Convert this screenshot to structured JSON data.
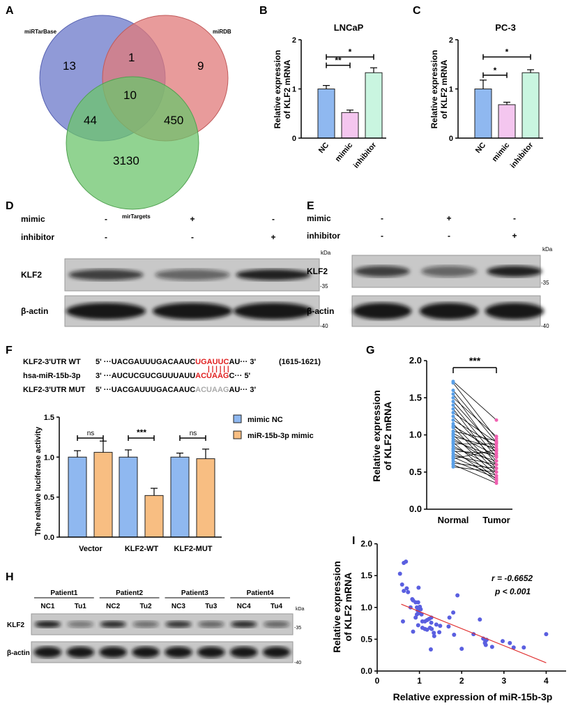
{
  "panels": {
    "A": "A",
    "B": "B",
    "C": "C",
    "D": "D",
    "E": "E",
    "F": "F",
    "G": "G",
    "H": "H",
    "I": "I"
  },
  "colors": {
    "blue": "#8fb8f0",
    "pink": "#f4c6ef",
    "mint": "#c9f5e0",
    "orange": "#f8be82",
    "venn_blue": "#6b78c9",
    "venn_red": "#e07a7a",
    "venn_green": "#6cc46c",
    "scatter": "#5a5fe0",
    "line": "#e03030",
    "red_text": "#e02020",
    "grey_text": "#aaaaaa"
  },
  "venn": {
    "labels": [
      "miRTarBase",
      "miRDB",
      "mirTargets"
    ],
    "counts": {
      "blue_only": "13",
      "blue_red": "1",
      "red_only": "9",
      "all": "10",
      "blue_green": "44",
      "red_green": "450",
      "green_only": "3130"
    }
  },
  "blots": {
    "D": {
      "rows": [
        "mimic",
        "inhibitor"
      ],
      "mimic": [
        "-",
        "+",
        "-"
      ],
      "inhibitor": [
        "-",
        "-",
        "+"
      ],
      "proteins": [
        "KLF2",
        "β-actin"
      ],
      "kda": "kDa",
      "m35": "-35",
      "m40": "-40"
    },
    "E": {
      "rows": [
        "mimic",
        "inhibitor"
      ],
      "mimic": [
        "-",
        "+",
        "-"
      ],
      "inhibitor": [
        "-",
        "-",
        "+"
      ],
      "proteins": [
        "KLF2",
        "β-actin"
      ],
      "kda": "kDa",
      "m35": "-35",
      "m40": "-40"
    },
    "H": {
      "patients": [
        "Patient1",
        "Patient2",
        "Patient3",
        "Patient4"
      ],
      "lanes": [
        "NC1",
        "Tu1",
        "NC2",
        "Tu2",
        "NC3",
        "Tu3",
        "NC4",
        "Tu4"
      ],
      "proteins": [
        "KLF2",
        "β-actin"
      ],
      "kda": "kDa",
      "m35": "-35",
      "m40": "-40"
    }
  },
  "sequences": {
    "rows": [
      {
        "label": "KLF2-3'UTR WT",
        "pre": "5' ···UACGAUUUGACAAUC",
        "site": "UGAUUC",
        "post": "AU··· 3'",
        "extra": "(1615-1621)"
      },
      {
        "label": "hsa-miR-15b-3p",
        "pre": "3' ···AUCUCGUCGUUUAUU",
        "site": "ACUAAG",
        "post": "C···    5'",
        "extra": ""
      },
      {
        "label": "KLF2-3'UTR MUT",
        "pre": "5' ···UACGAUUUGACAAUC",
        "site": "ACUAAG",
        "post": "AU··· 3'",
        "extra": ""
      }
    ],
    "pairing": "| | | | | |"
  },
  "chart_data": [
    {
      "id": "B",
      "type": "bar",
      "title": "LNCaP",
      "ylabel": "Relative expression of KLF2 mRNA",
      "ylim": [
        0,
        2
      ],
      "yticks": [
        "0",
        "1",
        "2"
      ],
      "categories": [
        "NC",
        "mimic",
        "inhibitor"
      ],
      "values": [
        1.0,
        0.52,
        1.33
      ],
      "errors": [
        0.07,
        0.05,
        0.1
      ],
      "colors": [
        "#8fb8f0",
        "#f4c6ef",
        "#c9f5e0"
      ],
      "significance": [
        {
          "pair": [
            0,
            1
          ],
          "label": "**"
        },
        {
          "pair": [
            0,
            2
          ],
          "label": "*"
        }
      ]
    },
    {
      "id": "C",
      "type": "bar",
      "title": "PC-3",
      "ylabel": "Relative expression of KLF2 mRNA",
      "ylim": [
        0,
        2
      ],
      "yticks": [
        "0",
        "1",
        "2"
      ],
      "categories": [
        "NC",
        "mimic",
        "inhibitor"
      ],
      "values": [
        1.0,
        0.68,
        1.33
      ],
      "errors": [
        0.18,
        0.05,
        0.06
      ],
      "colors": [
        "#8fb8f0",
        "#f4c6ef",
        "#c9f5e0"
      ],
      "significance": [
        {
          "pair": [
            0,
            1
          ],
          "label": "*"
        },
        {
          "pair": [
            0,
            2
          ],
          "label": "*"
        }
      ]
    },
    {
      "id": "F",
      "type": "bar",
      "ylabel": "The relative luciferase activity",
      "ylim": [
        0,
        1.5
      ],
      "yticks": [
        "0.0",
        "0.5",
        "1.0",
        "1.5"
      ],
      "categories": [
        "Vector",
        "KLF2-WT",
        "KLF2-MUT"
      ],
      "series": [
        {
          "name": "mimic NC",
          "values": [
            1.0,
            1.0,
            1.0
          ],
          "errors": [
            0.08,
            0.09,
            0.05
          ],
          "color": "#8fb8f0"
        },
        {
          "name": "miR-15b-3p mimic",
          "values": [
            1.06,
            0.52,
            0.98
          ],
          "errors": [
            0.14,
            0.09,
            0.12
          ],
          "color": "#f8be82"
        }
      ],
      "significance": [
        "ns",
        "***",
        "ns"
      ]
    },
    {
      "id": "G",
      "type": "line",
      "ylabel": "Relative expression of KLF2 mRNA",
      "ylim": [
        0,
        2
      ],
      "yticks": [
        "0.0",
        "0.5",
        "1.0",
        "1.5",
        "2.0"
      ],
      "categories": [
        "Normal",
        "Tumor"
      ],
      "significance": "***",
      "pairs": [
        [
          1.72,
          1.2
        ],
        [
          1.7,
          0.95
        ],
        [
          1.6,
          0.9
        ],
        [
          1.55,
          0.75
        ],
        [
          1.5,
          0.98
        ],
        [
          1.45,
          0.8
        ],
        [
          1.4,
          0.7
        ],
        [
          1.35,
          0.6
        ],
        [
          1.3,
          0.9
        ],
        [
          1.25,
          0.65
        ],
        [
          1.2,
          0.85
        ],
        [
          1.15,
          0.55
        ],
        [
          1.12,
          0.78
        ],
        [
          1.1,
          0.5
        ],
        [
          1.05,
          0.92
        ],
        [
          1.02,
          0.72
        ],
        [
          1.0,
          0.45
        ],
        [
          0.98,
          0.82
        ],
        [
          0.95,
          0.6
        ],
        [
          0.92,
          0.7
        ],
        [
          0.9,
          0.4
        ],
        [
          0.88,
          0.88
        ],
        [
          0.85,
          0.55
        ],
        [
          0.82,
          0.65
        ],
        [
          0.8,
          0.38
        ],
        [
          0.78,
          0.75
        ],
        [
          0.75,
          0.5
        ],
        [
          0.72,
          0.6
        ],
        [
          0.7,
          0.45
        ],
        [
          0.68,
          0.8
        ],
        [
          0.65,
          0.42
        ],
        [
          0.62,
          0.55
        ],
        [
          0.6,
          0.35
        ],
        [
          0.57,
          0.5
        ]
      ],
      "colors": [
        "#5aa0e8",
        "#f060b0"
      ]
    },
    {
      "id": "I",
      "type": "scatter",
      "xlabel": "Relative expression of miR-15b-3p",
      "ylabel": "Relative expression of KLF2 mRNA",
      "xlim": [
        0,
        4.5
      ],
      "ylim": [
        0,
        2
      ],
      "xticks": [
        "0",
        "1",
        "2",
        "3",
        "4"
      ],
      "yticks": [
        "0.0",
        "0.5",
        "1.0",
        "1.5",
        "2.0"
      ],
      "annotation": {
        "r": "r = -0.6652",
        "p": "p < 0.001"
      },
      "fit": [
        [
          0.57,
          1.05
        ],
        [
          4.0,
          0.13
        ]
      ],
      "points": [
        [
          0.54,
          1.53
        ],
        [
          0.63,
          1.7
        ],
        [
          0.68,
          1.72
        ],
        [
          0.59,
          1.36
        ],
        [
          0.63,
          1.26
        ],
        [
          0.7,
          1.3
        ],
        [
          0.73,
          1.24
        ],
        [
          0.98,
          1.31
        ],
        [
          0.83,
          1.13
        ],
        [
          0.85,
          1.11
        ],
        [
          0.91,
          1.08
        ],
        [
          0.97,
          1.08
        ],
        [
          0.79,
          1.0
        ],
        [
          0.94,
          1.0
        ],
        [
          1.01,
          1.01
        ],
        [
          1.03,
          0.97
        ],
        [
          0.96,
          0.95
        ],
        [
          0.99,
          0.91
        ],
        [
          0.94,
          0.89
        ],
        [
          1.05,
          0.89
        ],
        [
          0.91,
          0.84
        ],
        [
          0.61,
          0.78
        ],
        [
          0.85,
          0.62
        ],
        [
          0.97,
          0.72
        ],
        [
          1.07,
          0.78
        ],
        [
          1.13,
          0.78
        ],
        [
          1.18,
          0.8
        ],
        [
          1.23,
          0.82
        ],
        [
          1.28,
          0.84
        ],
        [
          1.07,
          0.68
        ],
        [
          1.13,
          0.66
        ],
        [
          1.18,
          0.65
        ],
        [
          1.25,
          0.68
        ],
        [
          1.29,
          0.66
        ],
        [
          1.34,
          0.6
        ],
        [
          1.35,
          0.55
        ],
        [
          1.28,
          0.76
        ],
        [
          1.4,
          0.73
        ],
        [
          1.49,
          0.71
        ],
        [
          1.47,
          0.61
        ],
        [
          1.27,
          0.34
        ],
        [
          1.71,
          0.84
        ],
        [
          1.69,
          0.7
        ],
        [
          1.8,
          0.92
        ],
        [
          1.82,
          0.57
        ],
        [
          1.9,
          1.19
        ],
        [
          2.0,
          0.35
        ],
        [
          2.28,
          0.58
        ],
        [
          2.43,
          0.81
        ],
        [
          2.51,
          0.51
        ],
        [
          2.56,
          0.47
        ],
        [
          2.59,
          0.49
        ],
        [
          2.55,
          0.44
        ],
        [
          2.57,
          0.41
        ],
        [
          2.72,
          0.38
        ],
        [
          2.97,
          0.47
        ],
        [
          3.14,
          0.44
        ],
        [
          3.23,
          0.37
        ],
        [
          3.47,
          0.37
        ],
        [
          4.0,
          0.58
        ]
      ]
    }
  ]
}
